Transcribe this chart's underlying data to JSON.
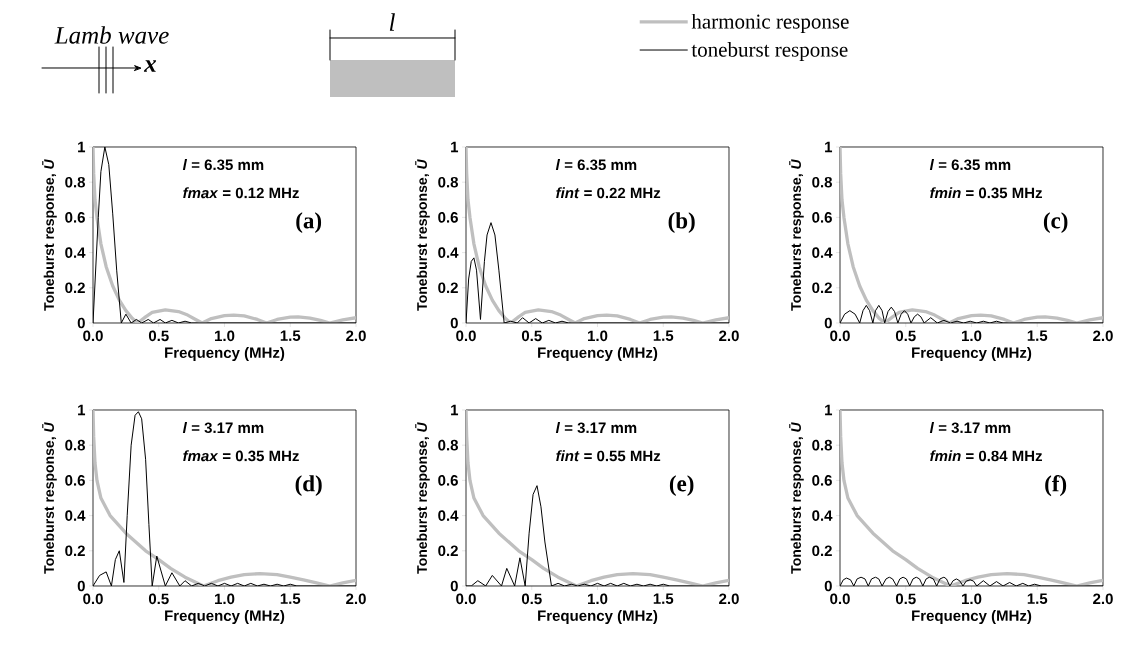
{
  "chart_data": [
    {
      "type": "line",
      "xlabel": "Frequency (MHz)",
      "ylabel": "Toneburst response, *Ū*",
      "xlim": [
        0,
        2
      ],
      "ylim": [
        0,
        1
      ],
      "xticks": [
        {
          "value": 0,
          "label": "0.0"
        },
        {
          "value": 0.5,
          "label": "0.5"
        },
        {
          "value": 1,
          "label": "1.0"
        },
        {
          "value": 1.5,
          "label": "1.5"
        },
        {
          "value": 2,
          "label": "2.0"
        }
      ],
      "yticks": [
        0,
        0.2,
        0.4,
        0.6,
        0.8,
        1
      ],
      "annotations": [
        "*l* = 6.35 mm",
        "*fmax* = 0.12 MHz",
        "(a)",
        "Lamb wave",
        "x",
        "l"
      ],
      "series": [
        {
          "color": "#bfbfbf",
          "x": [
            0,
            0.005,
            0.015,
            0.03,
            0.06,
            0.1,
            0.15,
            0.2,
            0.25,
            0.3,
            0.34,
            0.4,
            0.45,
            0.55,
            0.65,
            0.72,
            0.78,
            0.83,
            0.9,
            1.0,
            1.07,
            1.15,
            1.25,
            1.32,
            1.4,
            1.5,
            1.56,
            1.65,
            1.73,
            1.8,
            1.9,
            2.0
          ],
          "values": [
            1,
            0.85,
            0.7,
            0.6,
            0.45,
            0.32,
            0.21,
            0.13,
            0.07,
            0.025,
            0,
            0.035,
            0.06,
            0.075,
            0.065,
            0.045,
            0.02,
            0,
            0.025,
            0.042,
            0.045,
            0.04,
            0.02,
            0,
            0.02,
            0.033,
            0.035,
            0.028,
            0.015,
            0,
            0.018,
            0.03
          ]
        },
        {
          "color": "#000000",
          "x": [
            0,
            0.02,
            0.04,
            0.06,
            0.09,
            0.12,
            0.15,
            0.18,
            0.215,
            0.25,
            0.29,
            0.33,
            0.37,
            0.42,
            0.46,
            0.51,
            0.55,
            0.6,
            0.65,
            0.7,
            0.75,
            2.0
          ],
          "values": [
            0,
            0.3,
            0.6,
            0.86,
            1,
            0.9,
            0.62,
            0.3,
            0,
            0.05,
            0,
            0.02,
            0,
            0.02,
            0,
            0.02,
            0,
            0.015,
            0,
            0.01,
            0,
            0
          ]
        }
      ]
    },
    {
      "type": "line",
      "xlabel": "Frequency (MHz)",
      "ylabel": "Toneburst response, *Ū*",
      "xlim": [
        0,
        2
      ],
      "ylim": [
        0,
        1
      ],
      "xticks": [
        {
          "value": 0,
          "label": "0.0"
        },
        {
          "value": 0.5,
          "label": "0.5"
        },
        {
          "value": 1,
          "label": "1.0"
        },
        {
          "value": 1.5,
          "label": "1.5"
        },
        {
          "value": 2,
          "label": "2.0"
        }
      ],
      "yticks": [
        0,
        0.2,
        0.4,
        0.6,
        0.8,
        1
      ],
      "annotations": [
        "*l* = 6.35 mm",
        "*fint* = 0.22 MHz",
        "(b)"
      ],
      "series": [
        {
          "color": "#bfbfbf",
          "x": [
            0,
            0.005,
            0.015,
            0.03,
            0.06,
            0.1,
            0.15,
            0.2,
            0.25,
            0.3,
            0.34,
            0.4,
            0.45,
            0.55,
            0.65,
            0.72,
            0.78,
            0.83,
            0.9,
            1.0,
            1.07,
            1.15,
            1.25,
            1.32,
            1.4,
            1.5,
            1.56,
            1.65,
            1.73,
            1.8,
            1.9,
            2.0
          ],
          "values": [
            1,
            0.85,
            0.7,
            0.6,
            0.45,
            0.32,
            0.21,
            0.13,
            0.07,
            0.025,
            0,
            0.035,
            0.06,
            0.075,
            0.065,
            0.045,
            0.02,
            0,
            0.025,
            0.042,
            0.045,
            0.04,
            0.02,
            0,
            0.02,
            0.033,
            0.035,
            0.028,
            0.015,
            0,
            0.018,
            0.03
          ]
        },
        {
          "color": "#000000",
          "x": [
            0,
            0.02,
            0.04,
            0.06,
            0.08,
            0.11,
            0.14,
            0.16,
            0.19,
            0.22,
            0.25,
            0.29,
            0.34,
            0.39,
            0.43,
            0.48,
            0.53,
            0.58,
            0.63,
            0.68,
            0.73,
            0.78,
            0.83,
            2.0
          ],
          "values": [
            0,
            0.25,
            0.35,
            0.37,
            0.3,
            0.02,
            0.35,
            0.5,
            0.57,
            0.5,
            0.3,
            0,
            0.01,
            0,
            0.03,
            0,
            0.025,
            0,
            0.015,
            0,
            0.01,
            0,
            0,
            0
          ]
        }
      ]
    },
    {
      "type": "line",
      "xlabel": "Frequency (MHz)",
      "ylabel": "Toneburst response, *Ū*",
      "xlim": [
        0,
        2
      ],
      "ylim": [
        0,
        1
      ],
      "legend": "top",
      "xticks": [
        {
          "value": 0,
          "label": "0.0"
        },
        {
          "value": 0.5,
          "label": "0.5"
        },
        {
          "value": 1,
          "label": "1.0"
        },
        {
          "value": 1.5,
          "label": "1.5"
        },
        {
          "value": 2,
          "label": "2.0"
        }
      ],
      "yticks": [
        0,
        0.2,
        0.4,
        0.6,
        0.8,
        1
      ],
      "annotations": [
        "*l* = 6.35 mm",
        "*fmin* = 0.35 MHz",
        "(c)"
      ],
      "series": [
        {
          "name": "harmonic response",
          "color": "#bfbfbf",
          "x": [
            0,
            0.005,
            0.015,
            0.03,
            0.06,
            0.1,
            0.15,
            0.2,
            0.25,
            0.3,
            0.34,
            0.4,
            0.45,
            0.55,
            0.65,
            0.72,
            0.78,
            0.83,
            0.9,
            1.0,
            1.07,
            1.15,
            1.25,
            1.32,
            1.4,
            1.5,
            1.56,
            1.65,
            1.73,
            1.8,
            1.9,
            2.0
          ],
          "values": [
            1,
            0.85,
            0.7,
            0.6,
            0.45,
            0.32,
            0.21,
            0.13,
            0.07,
            0.025,
            0,
            0.035,
            0.06,
            0.075,
            0.065,
            0.045,
            0.02,
            0,
            0.025,
            0.042,
            0.045,
            0.04,
            0.02,
            0,
            0.02,
            0.033,
            0.035,
            0.028,
            0.015,
            0,
            0.018,
            0.03
          ]
        },
        {
          "name": "toneburst response",
          "color": "#000000",
          "x": [
            0,
            0.035,
            0.075,
            0.115,
            0.15,
            0.175,
            0.2,
            0.225,
            0.25,
            0.27,
            0.295,
            0.32,
            0.34,
            0.365,
            0.39,
            0.415,
            0.44,
            0.465,
            0.49,
            0.515,
            0.54,
            0.565,
            0.59,
            0.615,
            0.64,
            0.69,
            0.74,
            0.79,
            0.84,
            0.89,
            0.94,
            0.99,
            1.04,
            1.09,
            1.14,
            1.19,
            1.24,
            2.0
          ],
          "values": [
            0,
            0.05,
            0.07,
            0.05,
            0,
            0.07,
            0.1,
            0.07,
            0,
            0.07,
            0.1,
            0.07,
            0,
            0.065,
            0.09,
            0.065,
            0,
            0.05,
            0.07,
            0.05,
            0,
            0.035,
            0.05,
            0.035,
            0,
            0.03,
            0,
            0.015,
            0,
            0.01,
            0,
            0.01,
            0,
            0.01,
            0,
            0.01,
            0,
            0
          ]
        }
      ]
    },
    {
      "type": "line",
      "xlabel": "Frequency (MHz)",
      "ylabel": "Toneburst response, *Ū*",
      "xlim": [
        0,
        2
      ],
      "ylim": [
        0,
        1
      ],
      "xticks": [
        {
          "value": 0,
          "label": "0.0"
        },
        {
          "value": 0.5,
          "label": "0.5"
        },
        {
          "value": 1,
          "label": "1.0"
        },
        {
          "value": 1.5,
          "label": "1.5"
        },
        {
          "value": 2,
          "label": "2.0"
        }
      ],
      "yticks": [
        0,
        0.2,
        0.4,
        0.6,
        0.8,
        1
      ],
      "annotations": [
        "*l* = 3.17 mm",
        "*fmax* = 0.35 MHz",
        "(d)"
      ],
      "series": [
        {
          "color": "#bfbfbf",
          "x": [
            0,
            0.005,
            0.015,
            0.03,
            0.06,
            0.13,
            0.25,
            0.4,
            0.5,
            0.59,
            0.7,
            0.84,
            0.95,
            1.05,
            1.15,
            1.27,
            1.4,
            1.5,
            1.6,
            1.7,
            1.8,
            1.9,
            2.0
          ],
          "values": [
            1,
            0.85,
            0.7,
            0.6,
            0.5,
            0.4,
            0.3,
            0.2,
            0.15,
            0.1,
            0.05,
            0,
            0.03,
            0.05,
            0.065,
            0.07,
            0.065,
            0.05,
            0.035,
            0.018,
            0,
            0.018,
            0.032
          ]
        },
        {
          "color": "#000000",
          "x": [
            0,
            0.05,
            0.1,
            0.14,
            0.17,
            0.2,
            0.235,
            0.26,
            0.29,
            0.32,
            0.345,
            0.37,
            0.4,
            0.425,
            0.45,
            0.485,
            0.55,
            0.6,
            0.66,
            0.7,
            0.75,
            0.8,
            0.85,
            0.9,
            0.95,
            1.0,
            1.05,
            1.1,
            1.15,
            1.2,
            1.25,
            1.3,
            1.35,
            1.4,
            1.45,
            1.5,
            1.55,
            2.0
          ],
          "values": [
            0,
            0.06,
            0.08,
            0,
            0.15,
            0.2,
            0.02,
            0.4,
            0.8,
            0.97,
            0.99,
            0.95,
            0.72,
            0.35,
            0,
            0.17,
            0,
            0.075,
            0,
            0.03,
            0,
            0.015,
            0,
            0.015,
            0,
            0.015,
            0,
            0.015,
            0,
            0.015,
            0,
            0.01,
            0,
            0.01,
            0,
            0.01,
            0,
            0
          ]
        }
      ]
    },
    {
      "type": "line",
      "xlabel": "Frequency (MHz)",
      "ylabel": "Toneburst response, *Ū*",
      "xlim": [
        0,
        2
      ],
      "ylim": [
        0,
        1
      ],
      "xticks": [
        {
          "value": 0,
          "label": "0.0"
        },
        {
          "value": 0.5,
          "label": "0.5"
        },
        {
          "value": 1,
          "label": "1.0"
        },
        {
          "value": 1.5,
          "label": "1.5"
        },
        {
          "value": 2,
          "label": "2.0"
        }
      ],
      "yticks": [
        0,
        0.2,
        0.4,
        0.6,
        0.8,
        1
      ],
      "annotations": [
        "*l* = 3.17 mm",
        "*fint* = 0.55 MHz",
        "(e)"
      ],
      "series": [
        {
          "color": "#bfbfbf",
          "x": [
            0,
            0.005,
            0.015,
            0.03,
            0.06,
            0.13,
            0.25,
            0.4,
            0.5,
            0.59,
            0.7,
            0.84,
            0.95,
            1.05,
            1.15,
            1.27,
            1.4,
            1.5,
            1.6,
            1.7,
            1.8,
            1.9,
            2.0
          ],
          "values": [
            1,
            0.85,
            0.7,
            0.6,
            0.5,
            0.4,
            0.3,
            0.2,
            0.15,
            0.1,
            0.05,
            0,
            0.03,
            0.05,
            0.065,
            0.07,
            0.065,
            0.05,
            0.035,
            0.018,
            0,
            0.018,
            0.032
          ]
        },
        {
          "color": "#000000",
          "x": [
            0,
            0.04,
            0.09,
            0.15,
            0.2,
            0.27,
            0.31,
            0.37,
            0.41,
            0.45,
            0.48,
            0.51,
            0.54,
            0.57,
            0.6,
            0.65,
            0.7,
            0.75,
            0.8,
            0.85,
            0.9,
            0.95,
            1.0,
            1.05,
            1.1,
            1.15,
            1.2,
            1.25,
            1.3,
            1.35,
            1.4,
            1.45,
            1.5,
            1.55,
            2.0
          ],
          "values": [
            0,
            0,
            0.03,
            0,
            0.06,
            0,
            0.1,
            0,
            0.16,
            0,
            0.3,
            0.52,
            0.57,
            0.45,
            0.25,
            0,
            0.015,
            0,
            0.01,
            0,
            0.01,
            0,
            0.015,
            0,
            0.015,
            0,
            0.015,
            0,
            0.01,
            0,
            0.01,
            0,
            0.01,
            0,
            0
          ]
        }
      ]
    },
    {
      "type": "line",
      "xlabel": "Frequency (MHz)",
      "ylabel": "Toneburst response, *Ū*",
      "xlim": [
        0,
        2
      ],
      "ylim": [
        0,
        1
      ],
      "xticks": [
        {
          "value": 0,
          "label": "0.0"
        },
        {
          "value": 0.5,
          "label": "0.5"
        },
        {
          "value": 1,
          "label": "1.0"
        },
        {
          "value": 1.5,
          "label": "1.5"
        },
        {
          "value": 2,
          "label": "2.0"
        }
      ],
      "yticks": [
        0,
        0.2,
        0.4,
        0.6,
        0.8,
        1
      ],
      "annotations": [
        "*l* = 3.17 mm",
        "*fmin* = 0.84 MHz",
        "(f)"
      ],
      "series": [
        {
          "color": "#bfbfbf",
          "x": [
            0,
            0.005,
            0.015,
            0.03,
            0.06,
            0.13,
            0.25,
            0.4,
            0.5,
            0.59,
            0.7,
            0.84,
            0.95,
            1.05,
            1.15,
            1.27,
            1.4,
            1.5,
            1.6,
            1.7,
            1.8,
            1.9,
            2.0
          ],
          "values": [
            1,
            0.85,
            0.7,
            0.6,
            0.5,
            0.4,
            0.3,
            0.2,
            0.15,
            0.1,
            0.05,
            0,
            0.03,
            0.05,
            0.065,
            0.07,
            0.065,
            0.05,
            0.035,
            0.018,
            0,
            0.018,
            0.032
          ]
        },
        {
          "color": "#000000",
          "x": [
            0,
            0.025,
            0.05,
            0.08,
            0.105,
            0.13,
            0.16,
            0.19,
            0.215,
            0.24,
            0.27,
            0.295,
            0.32,
            0.35,
            0.375,
            0.4,
            0.43,
            0.455,
            0.48,
            0.505,
            0.53,
            0.555,
            0.58,
            0.605,
            0.63,
            0.655,
            0.68,
            0.71,
            0.735,
            0.76,
            0.79,
            0.81,
            0.835,
            0.86,
            0.885,
            0.91,
            0.935,
            0.96,
            0.99,
            1.015,
            1.04,
            1.09,
            1.14,
            1.19,
            1.24,
            1.29,
            1.34,
            1.39,
            1.435,
            1.48,
            1.53,
            2.0
          ],
          "values": [
            0,
            0.035,
            0.045,
            0.035,
            0,
            0.04,
            0.05,
            0.04,
            0,
            0.04,
            0.05,
            0.04,
            0,
            0.04,
            0.05,
            0.04,
            0,
            0.04,
            0.05,
            0.04,
            0,
            0.04,
            0.05,
            0.04,
            0,
            0.04,
            0.05,
            0.04,
            0,
            0.04,
            0.05,
            0.04,
            0,
            0.03,
            0.04,
            0.03,
            0,
            0.028,
            0.035,
            0.028,
            0,
            0.03,
            0,
            0.025,
            0,
            0.02,
            0,
            0.015,
            0,
            0.01,
            0,
            0
          ]
        }
      ]
    }
  ]
}
